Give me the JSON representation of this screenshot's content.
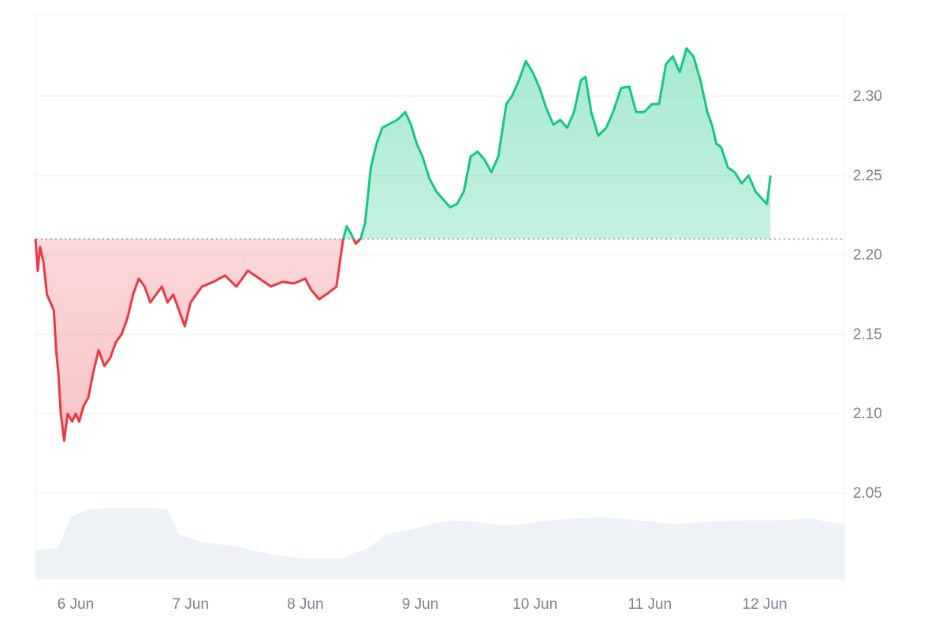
{
  "chart_data": {
    "type": "area",
    "baseline": 2.21,
    "ylim": [
      2.0,
      2.35
    ],
    "y_ticks": [
      2.05,
      2.1,
      2.15,
      2.2,
      2.25,
      2.3
    ],
    "y_tick_labels": [
      "2.05",
      "2.10",
      "2.15",
      "2.20",
      "2.25",
      "2.30"
    ],
    "x_range": [
      5.65,
      12.7
    ],
    "x_ticks": [
      6,
      7,
      8,
      9,
      10,
      11,
      12
    ],
    "x_tick_labels": [
      "6 Jun",
      "7 Jun",
      "8 Jun",
      "9 Jun",
      "10 Jun",
      "11 Jun",
      "12 Jun"
    ],
    "grid": true,
    "colors": {
      "up": "#16c784",
      "down": "#ea3943",
      "volume": "#eef1f5",
      "grid": "#ebeef2",
      "baseline": "#8a8f98",
      "tick_text": "#7a8190"
    },
    "series": [
      {
        "values": [
          {
            "x": 5.65,
            "y": 2.21
          },
          {
            "x": 5.67,
            "y": 2.19
          },
          {
            "x": 5.69,
            "y": 2.205
          },
          {
            "x": 5.72,
            "y": 2.195
          },
          {
            "x": 5.75,
            "y": 2.175
          },
          {
            "x": 5.78,
            "y": 2.17
          },
          {
            "x": 5.81,
            "y": 2.165
          },
          {
            "x": 5.83,
            "y": 2.14
          },
          {
            "x": 5.85,
            "y": 2.125
          },
          {
            "x": 5.87,
            "y": 2.1
          },
          {
            "x": 5.9,
            "y": 2.083
          },
          {
            "x": 5.93,
            "y": 2.1
          },
          {
            "x": 5.97,
            "y": 2.095
          },
          {
            "x": 6.0,
            "y": 2.1
          },
          {
            "x": 6.03,
            "y": 2.095
          },
          {
            "x": 6.07,
            "y": 2.105
          },
          {
            "x": 6.11,
            "y": 2.11
          },
          {
            "x": 6.15,
            "y": 2.125
          },
          {
            "x": 6.2,
            "y": 2.14
          },
          {
            "x": 6.25,
            "y": 2.13
          },
          {
            "x": 6.3,
            "y": 2.135
          },
          {
            "x": 6.35,
            "y": 2.145
          },
          {
            "x": 6.4,
            "y": 2.15
          },
          {
            "x": 6.45,
            "y": 2.16
          },
          {
            "x": 6.5,
            "y": 2.175
          },
          {
            "x": 6.55,
            "y": 2.185
          },
          {
            "x": 6.6,
            "y": 2.18
          },
          {
            "x": 6.65,
            "y": 2.17
          },
          {
            "x": 6.7,
            "y": 2.175
          },
          {
            "x": 6.75,
            "y": 2.18
          },
          {
            "x": 6.8,
            "y": 2.17
          },
          {
            "x": 6.85,
            "y": 2.175
          },
          {
            "x": 6.9,
            "y": 2.165
          },
          {
            "x": 6.95,
            "y": 2.155
          },
          {
            "x": 7.0,
            "y": 2.17
          },
          {
            "x": 7.05,
            "y": 2.175
          },
          {
            "x": 7.1,
            "y": 2.18
          },
          {
            "x": 7.2,
            "y": 2.183
          },
          {
            "x": 7.3,
            "y": 2.187
          },
          {
            "x": 7.4,
            "y": 2.18
          },
          {
            "x": 7.5,
            "y": 2.19
          },
          {
            "x": 7.6,
            "y": 2.185
          },
          {
            "x": 7.7,
            "y": 2.18
          },
          {
            "x": 7.8,
            "y": 2.183
          },
          {
            "x": 7.9,
            "y": 2.182
          },
          {
            "x": 8.0,
            "y": 2.185
          },
          {
            "x": 8.05,
            "y": 2.178
          },
          {
            "x": 8.12,
            "y": 2.172
          },
          {
            "x": 8.2,
            "y": 2.176
          },
          {
            "x": 8.27,
            "y": 2.18
          },
          {
            "x": 8.3,
            "y": 2.195
          },
          {
            "x": 8.33,
            "y": 2.21
          },
          {
            "x": 8.36,
            "y": 2.218
          },
          {
            "x": 8.4,
            "y": 2.213
          },
          {
            "x": 8.44,
            "y": 2.207
          },
          {
            "x": 8.48,
            "y": 2.21
          },
          {
            "x": 8.52,
            "y": 2.22
          },
          {
            "x": 8.57,
            "y": 2.255
          },
          {
            "x": 8.62,
            "y": 2.27
          },
          {
            "x": 8.67,
            "y": 2.28
          },
          {
            "x": 8.72,
            "y": 2.282
          },
          {
            "x": 8.8,
            "y": 2.285
          },
          {
            "x": 8.87,
            "y": 2.29
          },
          {
            "x": 8.92,
            "y": 2.282
          },
          {
            "x": 8.97,
            "y": 2.27
          },
          {
            "x": 9.02,
            "y": 2.262
          },
          {
            "x": 9.08,
            "y": 2.248
          },
          {
            "x": 9.14,
            "y": 2.24
          },
          {
            "x": 9.2,
            "y": 2.235
          },
          {
            "x": 9.26,
            "y": 2.23
          },
          {
            "x": 9.32,
            "y": 2.232
          },
          {
            "x": 9.38,
            "y": 2.24
          },
          {
            "x": 9.44,
            "y": 2.262
          },
          {
            "x": 9.5,
            "y": 2.265
          },
          {
            "x": 9.56,
            "y": 2.26
          },
          {
            "x": 9.62,
            "y": 2.252
          },
          {
            "x": 9.68,
            "y": 2.262
          },
          {
            "x": 9.75,
            "y": 2.295
          },
          {
            "x": 9.8,
            "y": 2.3
          },
          {
            "x": 9.86,
            "y": 2.31
          },
          {
            "x": 9.92,
            "y": 2.322
          },
          {
            "x": 9.98,
            "y": 2.315
          },
          {
            "x": 10.04,
            "y": 2.305
          },
          {
            "x": 10.1,
            "y": 2.292
          },
          {
            "x": 10.16,
            "y": 2.282
          },
          {
            "x": 10.22,
            "y": 2.285
          },
          {
            "x": 10.28,
            "y": 2.28
          },
          {
            "x": 10.34,
            "y": 2.29
          },
          {
            "x": 10.4,
            "y": 2.31
          },
          {
            "x": 10.44,
            "y": 2.312
          },
          {
            "x": 10.49,
            "y": 2.29
          },
          {
            "x": 10.55,
            "y": 2.275
          },
          {
            "x": 10.62,
            "y": 2.28
          },
          {
            "x": 10.68,
            "y": 2.29
          },
          {
            "x": 10.75,
            "y": 2.305
          },
          {
            "x": 10.82,
            "y": 2.306
          },
          {
            "x": 10.88,
            "y": 2.29
          },
          {
            "x": 10.95,
            "y": 2.29
          },
          {
            "x": 11.02,
            "y": 2.295
          },
          {
            "x": 11.08,
            "y": 2.295
          },
          {
            "x": 11.14,
            "y": 2.32
          },
          {
            "x": 11.2,
            "y": 2.325
          },
          {
            "x": 11.26,
            "y": 2.315
          },
          {
            "x": 11.32,
            "y": 2.33
          },
          {
            "x": 11.38,
            "y": 2.325
          },
          {
            "x": 11.44,
            "y": 2.31
          },
          {
            "x": 11.5,
            "y": 2.29
          },
          {
            "x": 11.54,
            "y": 2.282
          },
          {
            "x": 11.58,
            "y": 2.27
          },
          {
            "x": 11.62,
            "y": 2.268
          },
          {
            "x": 11.68,
            "y": 2.255
          },
          {
            "x": 11.74,
            "y": 2.252
          },
          {
            "x": 11.8,
            "y": 2.245
          },
          {
            "x": 11.86,
            "y": 2.25
          },
          {
            "x": 11.92,
            "y": 2.24
          },
          {
            "x": 11.98,
            "y": 2.235
          },
          {
            "x": 12.02,
            "y": 2.232
          },
          {
            "x": 12.05,
            "y": 2.25
          }
        ]
      }
    ],
    "volume": [
      {
        "x": 5.65,
        "y": 0.35
      },
      {
        "x": 5.85,
        "y": 0.38
      },
      {
        "x": 5.95,
        "y": 0.75
      },
      {
        "x": 6.1,
        "y": 0.85
      },
      {
        "x": 6.3,
        "y": 0.88
      },
      {
        "x": 6.5,
        "y": 0.87
      },
      {
        "x": 6.7,
        "y": 0.87
      },
      {
        "x": 6.8,
        "y": 0.85
      },
      {
        "x": 6.9,
        "y": 0.55
      },
      {
        "x": 7.1,
        "y": 0.45
      },
      {
        "x": 7.4,
        "y": 0.4
      },
      {
        "x": 7.7,
        "y": 0.3
      },
      {
        "x": 8.0,
        "y": 0.25
      },
      {
        "x": 8.3,
        "y": 0.25
      },
      {
        "x": 8.55,
        "y": 0.38
      },
      {
        "x": 8.7,
        "y": 0.55
      },
      {
        "x": 8.9,
        "y": 0.6
      },
      {
        "x": 9.1,
        "y": 0.68
      },
      {
        "x": 9.3,
        "y": 0.72
      },
      {
        "x": 9.5,
        "y": 0.7
      },
      {
        "x": 9.75,
        "y": 0.65
      },
      {
        "x": 10.0,
        "y": 0.7
      },
      {
        "x": 10.3,
        "y": 0.74
      },
      {
        "x": 10.6,
        "y": 0.76
      },
      {
        "x": 10.9,
        "y": 0.72
      },
      {
        "x": 11.2,
        "y": 0.68
      },
      {
        "x": 11.5,
        "y": 0.7
      },
      {
        "x": 11.8,
        "y": 0.72
      },
      {
        "x": 12.1,
        "y": 0.72
      },
      {
        "x": 12.4,
        "y": 0.75
      },
      {
        "x": 12.55,
        "y": 0.7
      },
      {
        "x": 12.7,
        "y": 0.68
      }
    ]
  }
}
